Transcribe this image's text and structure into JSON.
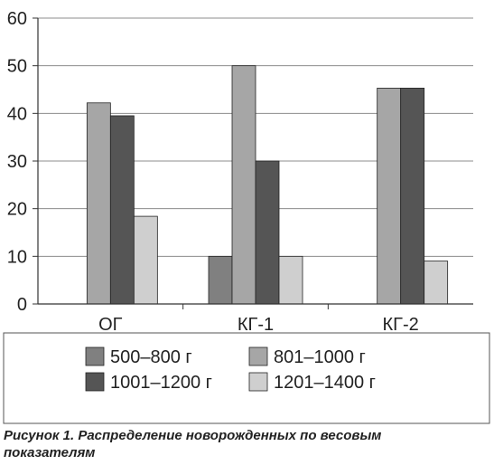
{
  "chart_data": {
    "type": "bar",
    "categories": [
      "ОГ",
      "КГ-1",
      "КГ-2"
    ],
    "series": [
      {
        "name": "500–800 г",
        "values": [
          0,
          10,
          0
        ],
        "color": "#808080"
      },
      {
        "name": "801–1000 г",
        "values": [
          42.2,
          50,
          45.3
        ],
        "color": "#a6a6a6"
      },
      {
        "name": "1001–1200 г",
        "values": [
          39.5,
          30,
          45.3
        ],
        "color": "#555555"
      },
      {
        "name": "1201–1400 г",
        "values": [
          18.4,
          10,
          9
        ],
        "color": "#cfcfcf"
      }
    ],
    "yticks": [
      "0",
      "10",
      "20",
      "30",
      "40",
      "50",
      "60"
    ],
    "ylim": [
      0,
      60
    ],
    "grid": true,
    "legend_placement": "bottom"
  },
  "caption": "Рисунок 1. Распределение новорожденных по весовым показателям"
}
